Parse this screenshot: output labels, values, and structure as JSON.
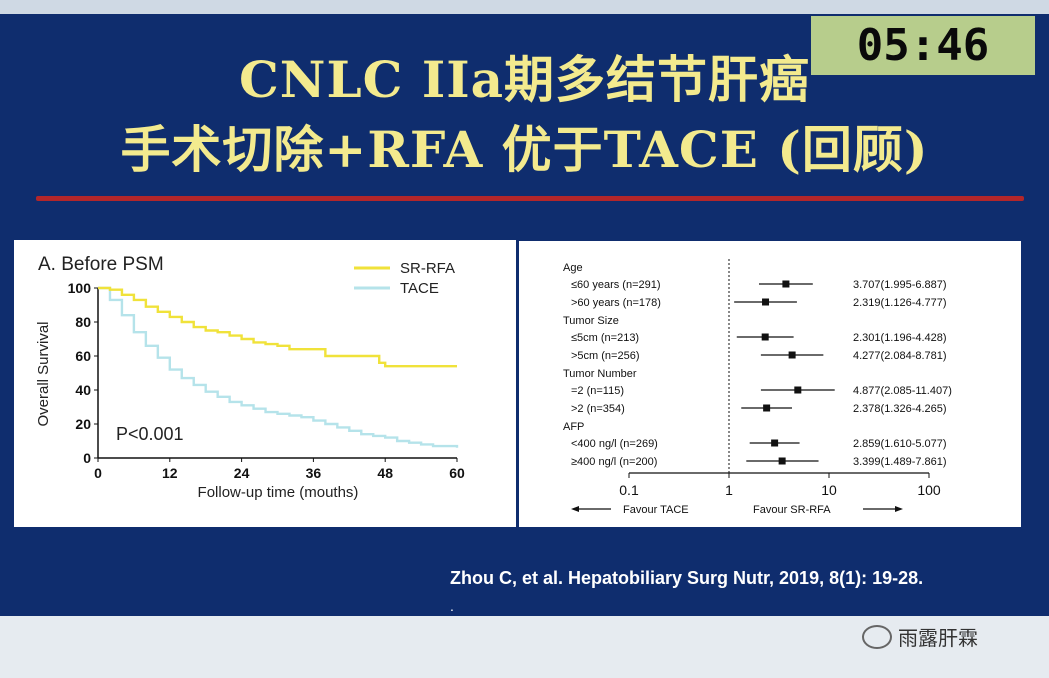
{
  "header": {
    "title_line1": "CNLC IIa期多结节肝癌",
    "title_line2": "手术切除+RFA 优于TACE (回顾)",
    "timer": "05:46"
  },
  "km": {
    "panel_title": "A. Before PSM",
    "pvalue": "P<0.001",
    "xlabel": "Follow-up time (mouths)",
    "ylabel": "Overall Survival",
    "xticks": [
      "0",
      "12",
      "24",
      "36",
      "48",
      "60"
    ],
    "yticks": [
      "0",
      "20",
      "40",
      "60",
      "80",
      "100"
    ],
    "legend": [
      "SR-RFA",
      "TACE"
    ]
  },
  "forest": {
    "favour_left": "Favour TACE",
    "favour_right": "Favour SR-RFA",
    "xticks": [
      "0.1",
      "1",
      "10",
      "100"
    ]
  },
  "citation": "Zhou C, et al. Hepatobiliary Surg Nutr, 2019, 8(1): 19-28.",
  "citation_dot": ".",
  "footer": {
    "brand": "雨露肝霖"
  },
  "colors": {
    "sr_rfa": "#f0e23a",
    "tace": "#b5e3ea",
    "title": "#f3ea8e",
    "slide_bg": "#0f2d6e",
    "accent_line": "#b3262a"
  },
  "chart_data": [
    {
      "type": "line",
      "title": "A. Before PSM",
      "xlabel": "Follow-up time (mouths)",
      "ylabel": "Overall Survival",
      "xlim": [
        0,
        60
      ],
      "ylim": [
        0,
        100
      ],
      "series": [
        {
          "name": "SR-RFA",
          "color": "#f0e23a",
          "x": [
            0,
            2,
            4,
            6,
            8,
            10,
            12,
            14,
            16,
            18,
            20,
            22,
            24,
            26,
            28,
            30,
            32,
            36,
            38,
            40,
            42,
            46,
            47,
            48,
            50,
            60
          ],
          "y": [
            100,
            99,
            96,
            93,
            89,
            86,
            83,
            80,
            77,
            75,
            74,
            72,
            70,
            68,
            67,
            66,
            64,
            64,
            60,
            60,
            60,
            60,
            56,
            54,
            54,
            54
          ]
        },
        {
          "name": "TACE",
          "color": "#b5e3ea",
          "x": [
            0,
            2,
            4,
            6,
            8,
            10,
            12,
            14,
            16,
            18,
            20,
            22,
            24,
            26,
            28,
            30,
            32,
            34,
            36,
            38,
            40,
            42,
            44,
            46,
            48,
            50,
            52,
            54,
            56,
            58,
            60
          ],
          "y": [
            100,
            93,
            84,
            74,
            66,
            59,
            52,
            47,
            43,
            39,
            36,
            33,
            31,
            29,
            27,
            26,
            25,
            24,
            22,
            20,
            18,
            16,
            14,
            13,
            12,
            10,
            9,
            8,
            7,
            7,
            6
          ]
        }
      ],
      "annotations": [
        "P<0.001"
      ]
    },
    {
      "type": "forest",
      "xscale": "log",
      "xlim": [
        0.1,
        100
      ],
      "groups": [
        {
          "label": "Age",
          "rows": [
            {
              "label": "≤60 years (n=291)",
              "hr": 3.707,
              "lo": 1.995,
              "hi": 6.887,
              "text": "3.707(1.995-6.887)"
            },
            {
              "label": ">60 years (n=178)",
              "hr": 2.319,
              "lo": 1.126,
              "hi": 4.777,
              "text": "2.319(1.126-4.777)"
            }
          ]
        },
        {
          "label": "Tumor Size",
          "rows": [
            {
              "label": "≤5cm (n=213)",
              "hr": 2.301,
              "lo": 1.196,
              "hi": 4.428,
              "text": "2.301(1.196-4.428)"
            },
            {
              "label": ">5cm (n=256)",
              "hr": 4.277,
              "lo": 2.084,
              "hi": 8.781,
              "text": "4.277(2.084-8.781)"
            }
          ]
        },
        {
          "label": "Tumor Number",
          "rows": [
            {
              "label": "=2 (n=115)",
              "hr": 4.877,
              "lo": 2.085,
              "hi": 11.407,
              "text": "4.877(2.085-11.407)"
            },
            {
              "label": ">2 (n=354)",
              "hr": 2.378,
              "lo": 1.326,
              "hi": 4.265,
              "text": "2.378(1.326-4.265)"
            }
          ]
        },
        {
          "label": "AFP",
          "rows": [
            {
              "label": "<400 ng/l (n=269)",
              "hr": 2.859,
              "lo": 1.61,
              "hi": 5.077,
              "text": "2.859(1.610-5.077)"
            },
            {
              "label": "≥400 ng/l (n=200)",
              "hr": 3.399,
              "lo": 1.489,
              "hi": 7.861,
              "text": "3.399(1.489-7.861)"
            }
          ]
        }
      ]
    }
  ]
}
